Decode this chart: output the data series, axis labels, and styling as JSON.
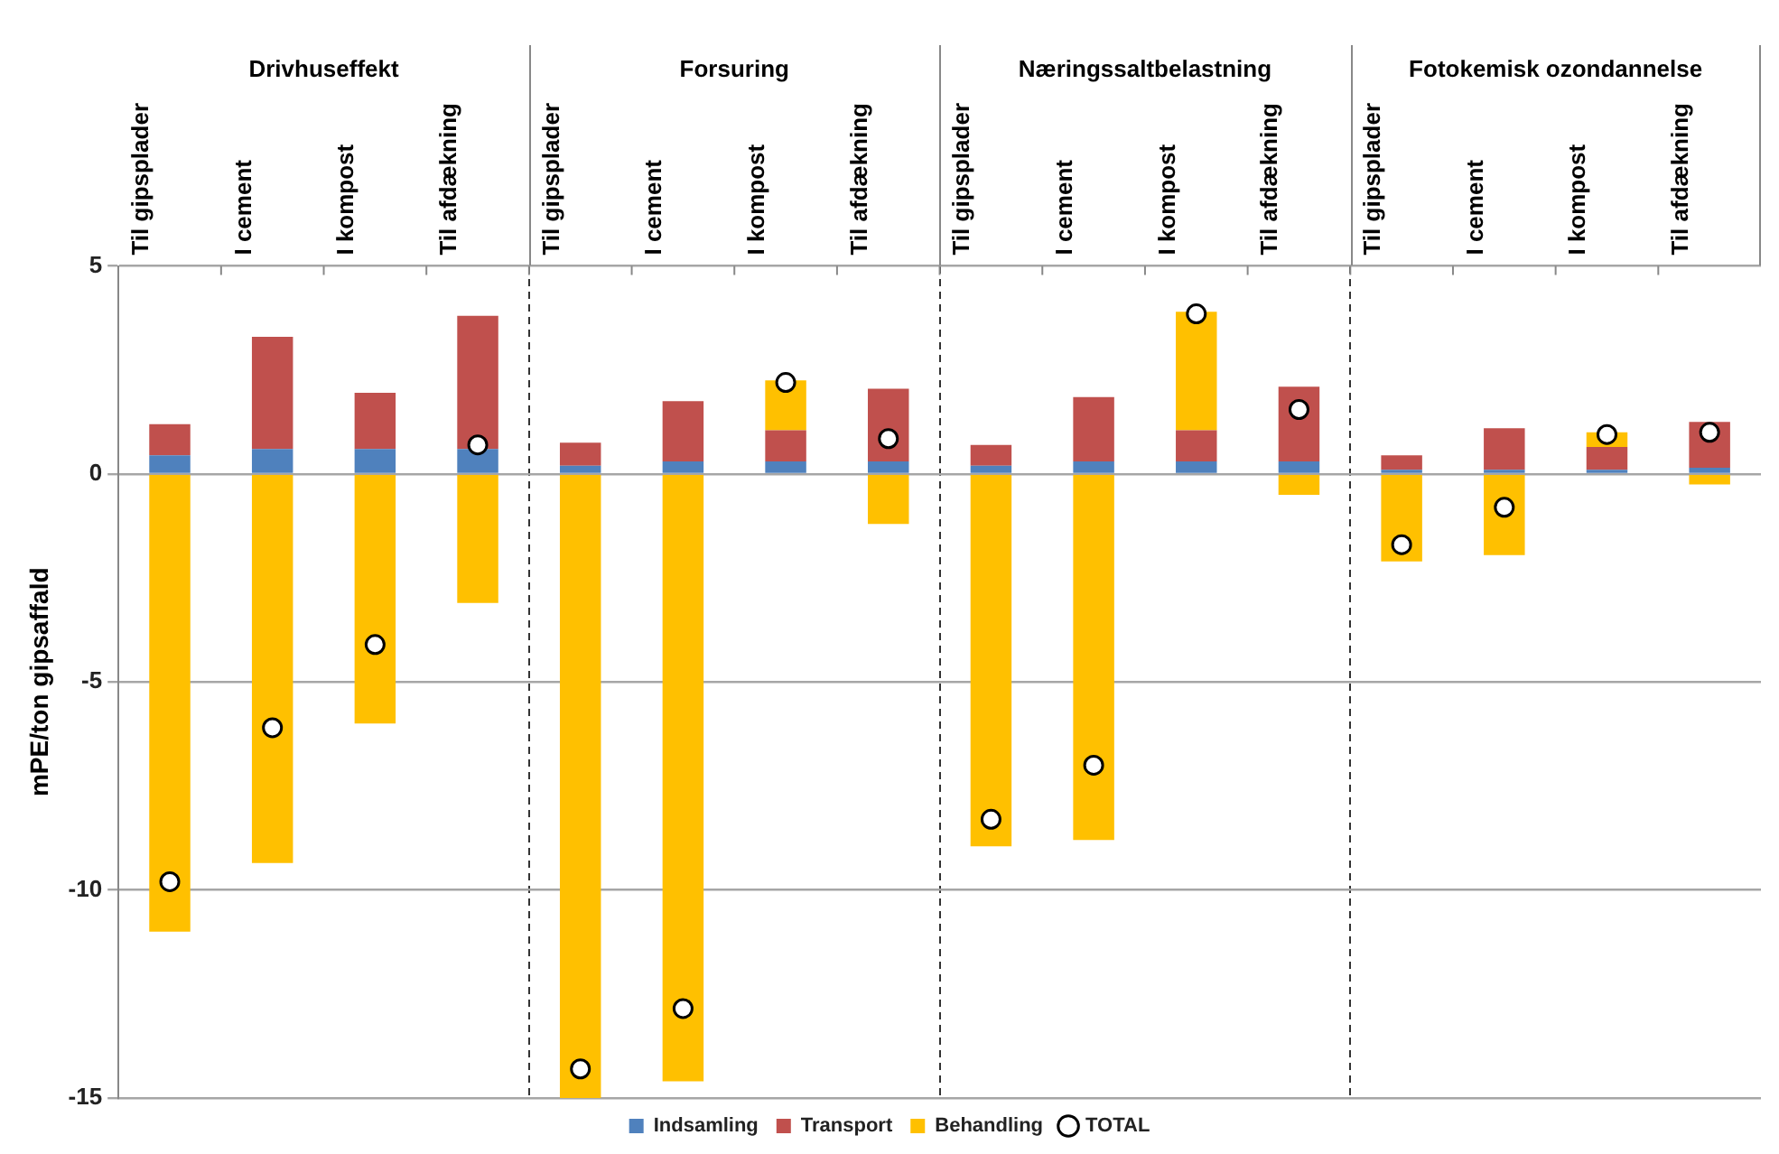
{
  "chart_data": {
    "type": "bar",
    "stacked": true,
    "ylabel": "mPE/ton gipsaffald",
    "annotations": [
      "Drivhuseffekt",
      "Forsuring",
      "Næringssaltbelastning",
      "Fotokemisk ozondannelse"
    ],
    "categories": [
      "Til gipsplader",
      "I cement",
      "I kompost",
      "Til afdækning",
      "Til gipsplader",
      "I cement",
      "I kompost",
      "Til afdækning",
      "Til gipsplader",
      "I cement",
      "I kompost",
      "Til afdækning",
      "Til gipsplader",
      "I cement",
      "I kompost",
      "Til afdækning"
    ],
    "series": [
      {
        "name": "Indsamling",
        "color": "#4f81bd",
        "values": [
          0.45,
          0.6,
          0.6,
          0.6,
          0.2,
          0.3,
          0.3,
          0.3,
          0.2,
          0.3,
          0.3,
          0.3,
          0.1,
          0.1,
          0.1,
          0.15
        ]
      },
      {
        "name": "Transport",
        "color": "#c0504d",
        "values": [
          0.75,
          2.7,
          1.35,
          3.2,
          0.55,
          1.45,
          0.75,
          1.75,
          0.5,
          1.55,
          0.75,
          1.8,
          0.35,
          1.0,
          0.55,
          1.1
        ]
      },
      {
        "name": "Behandling",
        "color": "#ffc000",
        "values": [
          -11.0,
          -9.35,
          -6.0,
          -3.1,
          -15.0,
          -14.6,
          1.2,
          -1.2,
          -8.95,
          -8.8,
          2.85,
          -0.5,
          -2.1,
          -1.95,
          0.35,
          -0.25
        ]
      },
      {
        "name": "TOTAL",
        "type": "scatter",
        "color": "#ffffff",
        "values": [
          -9.8,
          -6.1,
          -4.1,
          0.7,
          -14.3,
          -12.85,
          2.2,
          0.85,
          -8.3,
          -7.0,
          3.85,
          1.55,
          -1.7,
          -0.8,
          0.95,
          1.0
        ]
      }
    ],
    "ylim": [
      -15,
      5
    ],
    "yticks": [
      -15,
      -10,
      -5,
      0,
      5
    ],
    "grid": "y",
    "legend": "bottom",
    "marker": "circle"
  }
}
